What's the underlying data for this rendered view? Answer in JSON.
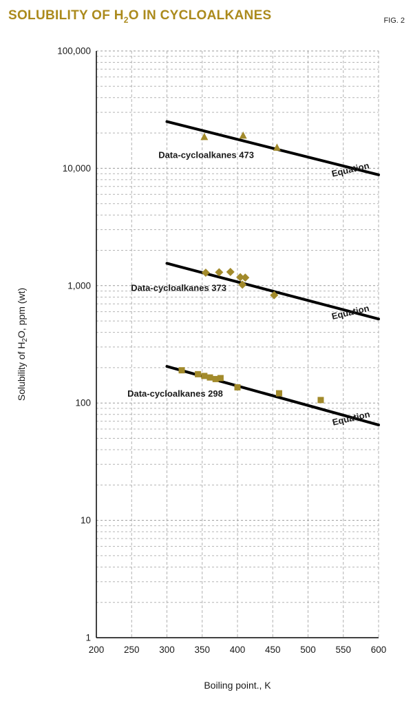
{
  "header": {
    "title_pre": "SOLUBILITY OF H",
    "title_sub": "2",
    "title_post": "O IN CYCLOALKANES",
    "fig_label": "FIG. 2"
  },
  "chart_data": {
    "type": "scatter",
    "title": "Solubility of H2O in cycloalkanes",
    "xlabel": "Boiling point., K",
    "ylabel": {
      "pre": "Solubility of H",
      "sub": "2",
      "post": "O, ppm (wt)"
    },
    "x_axis": {
      "min": 200,
      "max": 600,
      "ticks": [
        200,
        250,
        300,
        350,
        400,
        450,
        500,
        550,
        600
      ]
    },
    "y_axis": {
      "scale": "log",
      "min": 1,
      "max": 100000,
      "decade_labels": [
        "1",
        "10",
        "100",
        "1,000",
        "10,000",
        "100,000"
      ]
    },
    "grid": {
      "minor_color": "#b4b4b4",
      "major_color": "#9a9a9a",
      "vertical_color": "#b0b0b0"
    },
    "line_color": "#000000",
    "marker_color": "#a28a2b",
    "series": [
      {
        "name": "Data-cycloalkanes 473",
        "marker": "triangle",
        "points": [
          [
            353,
            18500
          ],
          [
            408,
            19000
          ],
          [
            456,
            15000
          ]
        ],
        "trend_line": {
          "x": [
            300,
            600
          ],
          "y": [
            25000,
            8800
          ]
        },
        "label": {
          "text": "Data-cycloalkanes 473",
          "x": 288,
          "y": 12200
        },
        "equation_label": {
          "text": "Equation",
          "x": 561,
          "y": 9200,
          "rotation": -13
        }
      },
      {
        "name": "Data-cycloalkanes 373",
        "marker": "diamond",
        "points": [
          [
            355,
            1290
          ],
          [
            374,
            1300
          ],
          [
            390,
            1310
          ],
          [
            404,
            1180
          ],
          [
            411,
            1170
          ],
          [
            407,
            1020
          ],
          [
            452,
            830
          ]
        ],
        "trend_line": {
          "x": [
            300,
            600
          ],
          "y": [
            1550,
            520
          ]
        },
        "label": {
          "text": "Data-cycloalkanes 373",
          "x": 249,
          "y": 900
        },
        "equation_label": {
          "text": "Equation",
          "x": 561,
          "y": 560,
          "rotation": -13
        }
      },
      {
        "name": "Data-cycloalkanes 298",
        "marker": "square",
        "points": [
          [
            321,
            190
          ],
          [
            344,
            176
          ],
          [
            353,
            170
          ],
          [
            361,
            165
          ],
          [
            369,
            160
          ],
          [
            376,
            163
          ],
          [
            400,
            136
          ],
          [
            459,
            121
          ],
          [
            518,
            106
          ]
        ],
        "trend_line": {
          "x": [
            300,
            600
          ],
          "y": [
            205,
            65
          ]
        },
        "label": {
          "text": "Data-cycloalkanes 298",
          "x": 244,
          "y": 113
        },
        "equation_label": {
          "text": "Equation",
          "x": 562,
          "y": 70,
          "rotation": -13
        }
      }
    ]
  }
}
